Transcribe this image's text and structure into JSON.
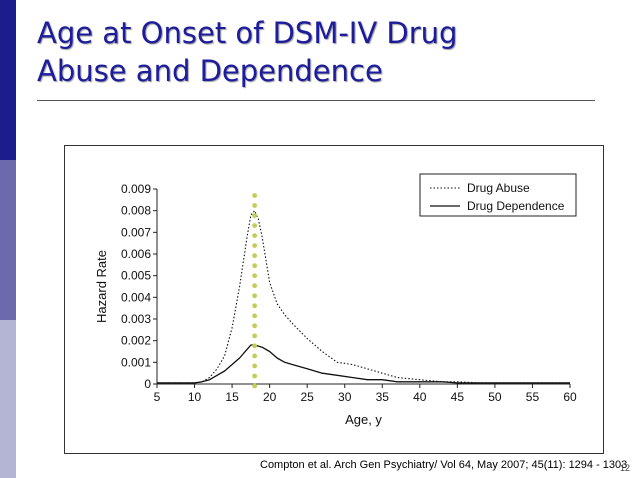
{
  "slide": {
    "title_line1": "Age at Onset of DSM-IV Drug",
    "title_line2": "Abuse and Dependence",
    "citation": "Compton et al. Arch Gen Psychiatry/ Vol 64, May  2007; 45(11): 1294 - 1303",
    "page_number": "12"
  },
  "colors": {
    "sidebar_dark": "#1c1c8c",
    "sidebar_mid": "#6a6aac",
    "sidebar_light": "#b4b4d4",
    "title": "#1c1c9c",
    "marker_dots": "#c2cc5a"
  },
  "chart_data": {
    "type": "line",
    "title": "",
    "xlabel": "Age, y",
    "ylabel": "Hazard Rate",
    "xlim": [
      5,
      60
    ],
    "ylim": [
      0,
      0.009
    ],
    "x_ticks": [
      "5",
      "10",
      "15",
      "20",
      "25",
      "30",
      "35",
      "40",
      "45",
      "50",
      "55",
      "60"
    ],
    "y_ticks": [
      "0",
      "0.001",
      "0.002",
      "0.003",
      "0.004",
      "0.005",
      "0.006",
      "0.007",
      "0.008",
      "0.009"
    ],
    "legend_position": "top-right",
    "series": [
      {
        "name": "Drug Abuse",
        "style": "dotted",
        "x": [
          5,
          8,
          10,
          11,
          12,
          13,
          14,
          15,
          16,
          17,
          17.5,
          18,
          18.5,
          19,
          20,
          21,
          22,
          23,
          25,
          27,
          29,
          31,
          33,
          35,
          37,
          40,
          43,
          45,
          48,
          50,
          55,
          60
        ],
        "y": [
          5e-05,
          5e-05,
          5e-05,
          0.0001,
          0.0003,
          0.0007,
          0.0013,
          0.0026,
          0.0045,
          0.0068,
          0.0078,
          0.008,
          0.0076,
          0.0068,
          0.0047,
          0.0037,
          0.0032,
          0.0028,
          0.0021,
          0.0015,
          0.001,
          0.0009,
          0.0007,
          0.0005,
          0.0003,
          0.0002,
          0.0001,
          0.0001,
          5e-05,
          5e-05,
          5e-05,
          5e-05
        ]
      },
      {
        "name": "Drug Dependence",
        "style": "solid",
        "x": [
          5,
          8,
          10,
          11,
          12,
          13,
          14,
          15,
          16,
          17,
          17.5,
          18,
          19,
          20,
          21,
          22,
          23,
          25,
          27,
          29,
          31,
          33,
          35,
          37,
          40,
          43,
          45,
          48,
          50,
          55,
          60
        ],
        "y": [
          5e-05,
          5e-05,
          5e-05,
          0.0001,
          0.0002,
          0.0004,
          0.0006,
          0.0009,
          0.0012,
          0.0016,
          0.0018,
          0.0018,
          0.0017,
          0.0015,
          0.0012,
          0.001,
          0.0009,
          0.0007,
          0.0005,
          0.0004,
          0.0003,
          0.0002,
          0.0002,
          0.0001,
          0.0001,
          0.0001,
          5e-05,
          5e-05,
          5e-05,
          5e-05,
          5e-05
        ]
      }
    ],
    "annotation": {
      "type": "vertical-dotted-marker",
      "x": 18,
      "y_top": 0.0087,
      "color": "#c2cc5a"
    }
  }
}
